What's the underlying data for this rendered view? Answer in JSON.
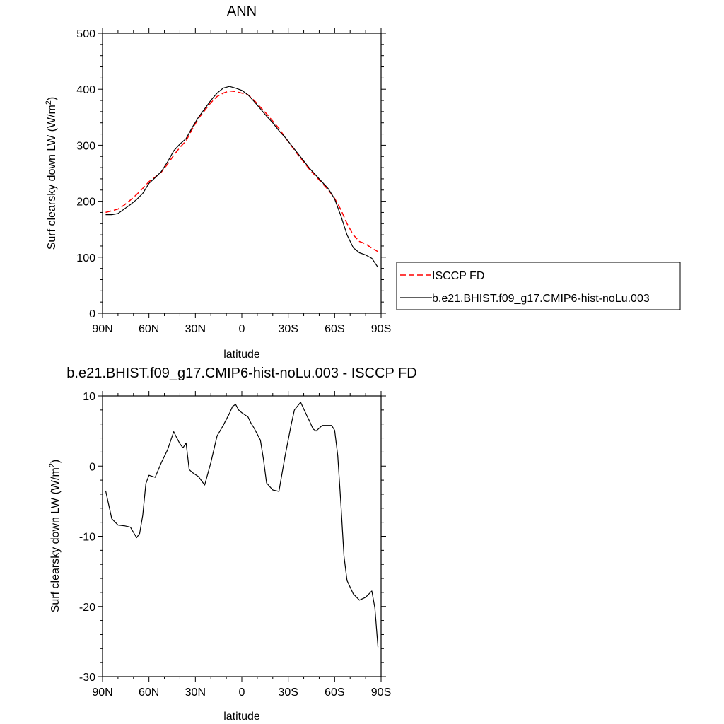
{
  "chart_data": [
    {
      "type": "line",
      "title": "ANN",
      "xlabel": "latitude",
      "ylabel": "Surf clearsky down LW (W/m",
      "ylabel_sup": "2",
      "ylabel_close": ")",
      "xlim": [
        90,
        -90
      ],
      "ylim": [
        0,
        500
      ],
      "xticks": [
        {
          "value": 90,
          "label": "90N"
        },
        {
          "value": 60,
          "label": "60N"
        },
        {
          "value": 30,
          "label": "30N"
        },
        {
          "value": 0,
          "label": "0"
        },
        {
          "value": -30,
          "label": "30S"
        },
        {
          "value": -60,
          "label": "60S"
        },
        {
          "value": -90,
          "label": "90S"
        }
      ],
      "yticks": [
        0,
        100,
        200,
        300,
        400,
        500
      ],
      "legend_position": "right",
      "series": [
        {
          "name": "ISCCP FD",
          "color": "#ff0000",
          "dash": "dashed",
          "x": [
            88,
            84,
            80,
            76,
            72,
            68,
            64,
            60,
            56,
            52,
            48,
            44,
            40,
            36,
            32,
            28,
            24,
            20,
            16,
            12,
            8,
            4,
            0,
            -4,
            -8,
            -12,
            -16,
            -20,
            -24,
            -28,
            -32,
            -36,
            -40,
            -44,
            -48,
            -52,
            -56,
            -60,
            -64,
            -68,
            -72,
            -76,
            -80,
            -84,
            -88
          ],
          "y": [
            180,
            183,
            186,
            193,
            202,
            212,
            223,
            235,
            243,
            252,
            266,
            282,
            296,
            308,
            329,
            348,
            362,
            376,
            387,
            393,
            397,
            396,
            393,
            390,
            380,
            368,
            356,
            343,
            330,
            314,
            299,
            284,
            270,
            256,
            244,
            232,
            220,
            205,
            185,
            160,
            140,
            128,
            124,
            116,
            110
          ]
        },
        {
          "name": "b.e21.BHIST.f09_g17.CMIP6-hist-noLu.003",
          "color": "#000000",
          "dash": "solid",
          "x": [
            88,
            84,
            80,
            76,
            72,
            68,
            64,
            60,
            56,
            52,
            48,
            44,
            40,
            36,
            32,
            28,
            24,
            20,
            16,
            12,
            8,
            4,
            0,
            -4,
            -8,
            -12,
            -16,
            -20,
            -24,
            -28,
            -32,
            -36,
            -40,
            -44,
            -48,
            -52,
            -56,
            -60,
            -64,
            -68,
            -72,
            -76,
            -80,
            -84,
            -88
          ],
          "y": [
            176,
            176,
            178,
            186,
            194,
            203,
            214,
            232,
            242,
            253,
            270,
            290,
            302,
            312,
            332,
            350,
            365,
            380,
            393,
            402,
            405,
            402,
            398,
            390,
            378,
            365,
            352,
            340,
            326,
            314,
            300,
            286,
            272,
            258,
            246,
            234,
            222,
            204,
            174,
            140,
            117,
            108,
            104,
            98,
            82
          ]
        }
      ]
    },
    {
      "type": "line",
      "title": "b.e21.BHIST.f09_g17.CMIP6-hist-noLu.003 - ISCCP FD",
      "xlabel": "latitude",
      "ylabel": "Surf clearsky down LW (W/m",
      "ylabel_sup": "2",
      "ylabel_close": ")",
      "xlim": [
        90,
        -90
      ],
      "ylim": [
        -30,
        10
      ],
      "xticks": [
        {
          "value": 90,
          "label": "90N"
        },
        {
          "value": 60,
          "label": "60N"
        },
        {
          "value": 30,
          "label": "30N"
        },
        {
          "value": 0,
          "label": "0"
        },
        {
          "value": -30,
          "label": "30S"
        },
        {
          "value": -60,
          "label": "60S"
        },
        {
          "value": -90,
          "label": "90S"
        }
      ],
      "yticks": [
        -30,
        -20,
        -10,
        0,
        10
      ],
      "series": [
        {
          "name": "",
          "color": "#000000",
          "dash": "solid",
          "x": [
            88,
            84,
            80,
            76,
            72,
            68,
            66,
            64,
            62,
            60,
            56,
            52,
            48,
            44,
            42,
            40,
            38,
            36,
            34,
            32,
            28,
            24,
            20,
            16,
            12,
            8,
            6,
            4,
            2,
            0,
            -2,
            -4,
            -6,
            -8,
            -12,
            -14,
            -16,
            -20,
            -24,
            -28,
            -32,
            -34,
            -38,
            -42,
            -44,
            -46,
            -48,
            -52,
            -56,
            -58,
            -60,
            -62,
            -64,
            -66,
            -68,
            -72,
            -76,
            -80,
            -84,
            -86,
            -88
          ],
          "y": [
            -3.5,
            -7.5,
            -8.4,
            -8.5,
            -8.7,
            -10.2,
            -9.6,
            -7,
            -2.5,
            -1.3,
            -1.6,
            0.5,
            2.3,
            4.9,
            4,
            3.2,
            2.6,
            3.3,
            -0.5,
            -0.9,
            -1.5,
            -2.7,
            0.5,
            4.3,
            5.8,
            7.5,
            8.5,
            8.8,
            8,
            7.6,
            7.3,
            7,
            6.1,
            5.4,
            3.7,
            1,
            -2.4,
            -3.4,
            -3.6,
            1.5,
            6,
            8,
            9.1,
            7.2,
            6.3,
            5.3,
            5,
            5.8,
            5.8,
            5.8,
            5.1,
            1.5,
            -5.3,
            -12.8,
            -16.3,
            -18.2,
            -19.1,
            -18.7,
            -17.8,
            -20.2,
            -25.8
          ]
        }
      ]
    }
  ]
}
